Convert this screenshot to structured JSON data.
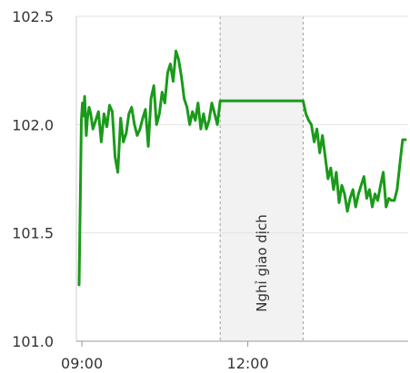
{
  "chart_data": {
    "type": "line",
    "title": "",
    "xlabel": "",
    "ylabel": "",
    "ylim": [
      101.0,
      102.5
    ],
    "y_ticks": [
      "101.0",
      "101.5",
      "102.0",
      "102.5"
    ],
    "x_ticks": [
      "09:00",
      "12:00"
    ],
    "x_tick_hours": [
      9,
      12
    ],
    "xlim_hours": [
      8.9,
      14.9
    ],
    "grid": "horizontal",
    "break_band": {
      "label": "Nghỉ giao dịch",
      "start_hour": 11.5,
      "end_hour": 13.0
    },
    "series": [
      {
        "color": "#1a9a1a",
        "x": [
          8.95,
          8.97,
          8.99,
          9.01,
          9.03,
          9.05,
          9.08,
          9.1,
          9.13,
          9.16,
          9.2,
          9.25,
          9.3,
          9.35,
          9.4,
          9.45,
          9.5,
          9.55,
          9.6,
          9.65,
          9.7,
          9.75,
          9.8,
          9.85,
          9.9,
          9.95,
          10.0,
          10.05,
          10.1,
          10.15,
          10.2,
          10.25,
          10.3,
          10.35,
          10.4,
          10.45,
          10.5,
          10.55,
          10.6,
          10.65,
          10.7,
          10.75,
          10.8,
          10.85,
          10.9,
          10.95,
          11.0,
          11.05,
          11.1,
          11.15,
          11.2,
          11.25,
          11.3,
          11.35,
          11.4,
          11.45,
          11.5,
          13.0,
          13.05,
          13.1,
          13.15,
          13.2,
          13.25,
          13.3,
          13.35,
          13.4,
          13.45,
          13.5,
          13.55,
          13.6,
          13.65,
          13.7,
          13.75,
          13.8,
          13.85,
          13.9,
          13.95,
          14.0,
          14.05,
          14.1,
          14.15,
          14.2,
          14.25,
          14.3,
          14.35,
          14.4,
          14.45,
          14.5,
          14.55,
          14.6,
          14.65,
          14.7,
          14.75,
          14.8,
          14.85
        ],
        "values": [
          101.26,
          101.65,
          102.02,
          102.1,
          102.04,
          102.13,
          101.95,
          102.03,
          102.08,
          102.05,
          101.98,
          102.02,
          102.06,
          101.92,
          102.05,
          101.99,
          102.09,
          102.06,
          101.85,
          101.78,
          102.03,
          101.92,
          101.96,
          102.05,
          102.08,
          102.0,
          101.95,
          101.98,
          102.03,
          102.07,
          101.9,
          102.12,
          102.18,
          102.0,
          102.05,
          102.15,
          102.1,
          102.24,
          102.28,
          102.2,
          102.34,
          102.3,
          102.22,
          102.12,
          102.08,
          102.0,
          102.06,
          102.02,
          102.1,
          101.98,
          102.05,
          101.98,
          102.02,
          102.1,
          102.05,
          102.0,
          102.11,
          102.11,
          102.05,
          102.02,
          102.0,
          101.92,
          101.98,
          101.87,
          101.95,
          101.85,
          101.75,
          101.8,
          101.7,
          101.78,
          101.64,
          101.72,
          101.68,
          101.6,
          101.66,
          101.7,
          101.62,
          101.68,
          101.72,
          101.76,
          101.66,
          101.7,
          101.62,
          101.68,
          101.65,
          101.72,
          101.78,
          101.62,
          101.66,
          101.65,
          101.65,
          101.7,
          101.82,
          101.93,
          101.93
        ]
      }
    ]
  }
}
